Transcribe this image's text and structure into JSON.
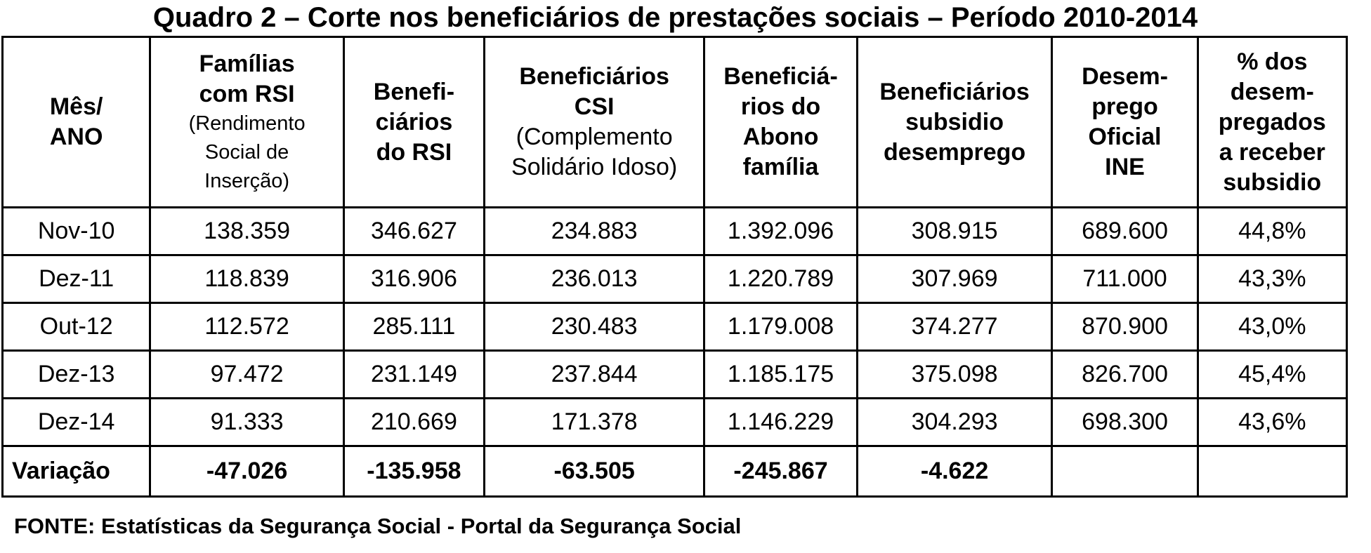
{
  "title": "Quadro 2 – Corte nos beneficiários de prestações sociais – Período 2010-2014",
  "headers": [
    {
      "main": "Mês/ ANO",
      "sub": ""
    },
    {
      "main": "Famílias com RSI",
      "sub": "(Rendimento Social de Inserção)"
    },
    {
      "main": "Benefi-ciários do RSI",
      "sub": ""
    },
    {
      "main": "Beneficiários CSI",
      "sub": "(Complemento Solidário Idoso)"
    },
    {
      "main": "Beneficiá-rios do Abono família",
      "sub": ""
    },
    {
      "main": "Beneficiários subsidio desemprego",
      "sub": ""
    },
    {
      "main": "Desem-prego Oficial INE",
      "sub": ""
    },
    {
      "main": "% dos desem-pregados a receber subsidio",
      "sub": ""
    }
  ],
  "rows": [
    [
      "Nov-10",
      "138.359",
      "346.627",
      "234.883",
      "1.392.096",
      "308.915",
      "689.600",
      "44,8%"
    ],
    [
      "Dez-11",
      "118.839",
      "316.906",
      "236.013",
      "1.220.789",
      "307.969",
      "711.000",
      "43,3%"
    ],
    [
      "Out-12",
      "112.572",
      "285.111",
      "230.483",
      "1.179.008",
      "374.277",
      "870.900",
      "43,0%"
    ],
    [
      "Dez-13",
      "97.472",
      "231.149",
      "237.844",
      "1.185.175",
      "375.098",
      "826.700",
      "45,4%"
    ],
    [
      "Dez-14",
      "91.333",
      "210.669",
      "171.378",
      "1.146.229",
      "304.293",
      "698.300",
      "43,6%"
    ]
  ],
  "variation": [
    "Variação",
    "-47.026",
    "-135.958",
    "-63.505",
    "-245.867",
    "-4.622",
    "",
    ""
  ],
  "source": "FONTE: Estatísticas da Segurança Social - Portal da Segurança Social"
}
